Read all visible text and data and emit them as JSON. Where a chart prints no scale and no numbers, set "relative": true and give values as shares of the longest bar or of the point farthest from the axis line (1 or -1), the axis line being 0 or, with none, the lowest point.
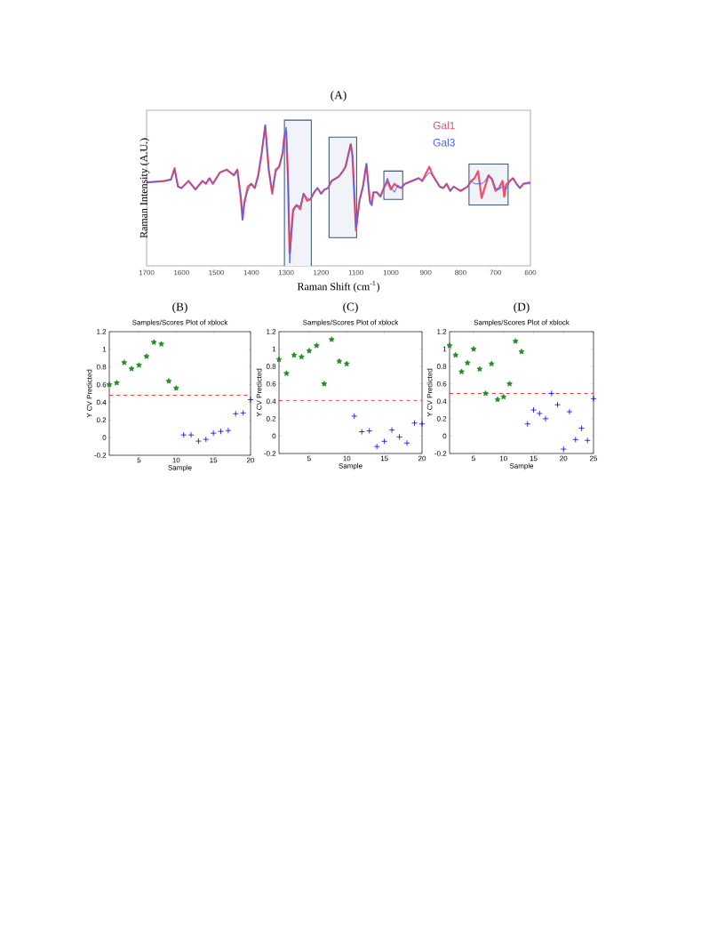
{
  "chart_data": [
    {
      "type": "line",
      "title": "(A)",
      "xlabel": "Raman Shift (cm$^{-1}$)",
      "ylabel": "Raman Intensity (A.U.)",
      "relative": true,
      "legend": "top right",
      "x": [
        1700,
        1650,
        1630,
        1620,
        1610,
        1600,
        1580,
        1560,
        1540,
        1530,
        1520,
        1510,
        1490,
        1470,
        1450,
        1440,
        1430,
        1425,
        1420,
        1410,
        1400,
        1390,
        1380,
        1370,
        1360,
        1350,
        1340,
        1330,
        1320,
        1310,
        1305,
        1300,
        1295,
        1290,
        1280,
        1270,
        1260,
        1250,
        1240,
        1230,
        1220,
        1210,
        1200,
        1190,
        1180,
        1170,
        1150,
        1140,
        1130,
        1115,
        1110,
        1100,
        1090,
        1080,
        1070,
        1060,
        1055,
        1050,
        1040,
        1030,
        1020,
        1010,
        1000,
        990,
        980,
        970,
        960,
        940,
        920,
        910,
        890,
        880,
        870,
        860,
        850,
        840,
        830,
        820,
        800,
        780,
        770,
        760,
        750,
        740,
        730,
        720,
        710,
        700,
        690,
        680,
        675,
        670,
        660,
        650,
        640,
        630,
        620,
        600
      ],
      "xlim": [
        1700,
        600
      ],
      "xticks": [
        1700,
        1600,
        1500,
        1400,
        1300,
        1200,
        1100,
        1000,
        900,
        800,
        700,
        600
      ],
      "series": [
        {
          "name": "Gal1",
          "color": "#f0506a",
          "values": [
            0.59,
            0.6,
            0.61,
            0.69,
            0.56,
            0.55,
            0.6,
            0.54,
            0.6,
            0.58,
            0.62,
            0.58,
            0.66,
            0.68,
            0.64,
            0.68,
            0.48,
            0.33,
            0.44,
            0.56,
            0.58,
            0.55,
            0.64,
            0.8,
            0.99,
            0.68,
            0.51,
            0.68,
            0.7,
            0.8,
            0.92,
            0.95,
            0.64,
            0.09,
            0.4,
            0.43,
            0.4,
            0.51,
            0.46,
            0.47,
            0.52,
            0.55,
            0.51,
            0.54,
            0.55,
            0.6,
            0.63,
            0.66,
            0.7,
            0.86,
            0.78,
            0.25,
            0.46,
            0.56,
            0.72,
            0.46,
            0.43,
            0.52,
            0.52,
            0.49,
            0.55,
            0.6,
            0.54,
            0.58,
            0.56,
            0.55,
            0.58,
            0.6,
            0.62,
            0.6,
            0.7,
            0.64,
            0.6,
            0.56,
            0.55,
            0.58,
            0.53,
            0.56,
            0.53,
            0.56,
            0.6,
            0.62,
            0.67,
            0.48,
            0.56,
            0.64,
            0.61,
            0.53,
            0.55,
            0.6,
            0.49,
            0.57,
            0.6,
            0.62,
            0.58,
            0.55,
            0.58,
            0.59
          ]
        },
        {
          "name": "Gal3",
          "color": "#4a5ef0",
          "values": [
            0.59,
            0.6,
            0.61,
            0.68,
            0.56,
            0.55,
            0.6,
            0.54,
            0.6,
            0.58,
            0.62,
            0.58,
            0.66,
            0.68,
            0.64,
            0.68,
            0.5,
            0.32,
            0.46,
            0.53,
            0.58,
            0.55,
            0.64,
            0.8,
            1.0,
            0.68,
            0.53,
            0.66,
            0.7,
            0.8,
            0.92,
            0.98,
            0.64,
            0.02,
            0.38,
            0.43,
            0.42,
            0.51,
            0.48,
            0.47,
            0.52,
            0.55,
            0.51,
            0.54,
            0.55,
            0.6,
            0.63,
            0.66,
            0.7,
            0.86,
            0.78,
            0.27,
            0.46,
            0.56,
            0.72,
            0.44,
            0.43,
            0.52,
            0.52,
            0.49,
            0.55,
            0.62,
            0.56,
            0.52,
            0.57,
            0.55,
            0.58,
            0.6,
            0.62,
            0.6,
            0.66,
            0.64,
            0.6,
            0.56,
            0.55,
            0.58,
            0.53,
            0.56,
            0.53,
            0.56,
            0.6,
            0.58,
            0.58,
            0.58,
            0.6,
            0.64,
            0.62,
            0.55,
            0.54,
            0.56,
            0.56,
            0.54,
            0.59,
            0.62,
            0.58,
            0.55,
            0.58,
            0.58
          ]
        }
      ],
      "bands": [
        {
          "axis": "x",
          "from": 1305,
          "to": 1228
        },
        {
          "axis": "x",
          "from": 1177,
          "to": 1098
        },
        {
          "axis": "x",
          "from": 1020,
          "to": 966
        },
        {
          "axis": "x",
          "from": 776,
          "to": 664
        }
      ]
    },
    {
      "type": "scatter",
      "title": "(B)",
      "subtitle": "Samples/Scores Plot of xblock",
      "xlabel": "Sample",
      "ylabel": "Y CV Predicted",
      "xlim": [
        1,
        20
      ],
      "xticks": [
        5,
        10,
        15,
        20
      ],
      "ylim": [
        -0.2,
        1.2
      ],
      "yticks": [
        -0.2,
        0,
        0.2,
        0.4,
        0.6,
        0.8,
        1,
        1.2
      ],
      "series": [
        {
          "color": "#1e8c1e",
          "marker": "star",
          "x": [
            1,
            2,
            3,
            4,
            5,
            6,
            7,
            8,
            9,
            10
          ],
          "values": [
            0.6,
            0.62,
            0.85,
            0.78,
            0.82,
            0.92,
            1.08,
            1.06,
            0.64,
            0.56
          ]
        },
        {
          "color": "#0000ff",
          "marker": "cross",
          "x": [
            11,
            12,
            13,
            14,
            15,
            16,
            17,
            18,
            19,
            20
          ],
          "values": [
            0.03,
            0.03,
            -0.04,
            -0.02,
            0.05,
            0.07,
            0.08,
            0.27,
            0.28,
            0.43
          ]
        }
      ],
      "ref_lines": [
        {
          "axis": "y",
          "value": 0.48,
          "color": "#ff0000",
          "line_style": "dashed"
        }
      ]
    },
    {
      "type": "scatter",
      "title": "(C)",
      "subtitle": "Samples/Scores Plot of xblock",
      "xlabel": "Sample",
      "ylabel": "Y CV Predicted",
      "xlim": [
        1,
        20
      ],
      "xticks": [
        5,
        10,
        15,
        20
      ],
      "ylim": [
        -0.2,
        1.2
      ],
      "yticks": [
        -0.2,
        0,
        0.2,
        0.4,
        0.6,
        0.8,
        1,
        1.2
      ],
      "series": [
        {
          "color": "#1e8c1e",
          "marker": "star",
          "x": [
            1,
            2,
            3,
            4,
            5,
            6,
            7,
            8,
            9,
            10
          ],
          "values": [
            0.88,
            0.72,
            0.93,
            0.91,
            0.98,
            1.04,
            0.6,
            1.11,
            0.86,
            0.83
          ]
        },
        {
          "color": "#0000ff",
          "marker": "cross",
          "x": [
            11,
            12,
            13,
            14,
            15,
            16,
            17,
            18,
            19,
            20
          ],
          "values": [
            0.23,
            0.05,
            0.06,
            -0.12,
            -0.06,
            0.07,
            -0.01,
            -0.08,
            0.15,
            0.14
          ]
        }
      ],
      "ref_lines": [
        {
          "axis": "y",
          "value": 0.41,
          "color": "#ff0000",
          "line_style": "dashed"
        }
      ]
    },
    {
      "type": "scatter",
      "title": "(D)",
      "subtitle": "Samples/Scores Plot of xblock",
      "xlabel": "Sample",
      "ylabel": "Y CV Predicted",
      "xlim": [
        1,
        25
      ],
      "xticks": [
        5,
        10,
        15,
        20,
        25
      ],
      "ylim": [
        -0.2,
        1.2
      ],
      "yticks": [
        -0.2,
        0,
        0.2,
        0.4,
        0.6,
        0.8,
        1,
        1.2
      ],
      "series": [
        {
          "color": "#1e8c1e",
          "marker": "star",
          "x": [
            1,
            2,
            3,
            4,
            5,
            6,
            7,
            8,
            9,
            10,
            11,
            12,
            13
          ],
          "values": [
            1.04,
            0.93,
            0.74,
            0.84,
            1.0,
            0.77,
            0.49,
            0.83,
            0.42,
            0.45,
            0.6,
            1.09,
            0.97
          ]
        },
        {
          "color": "#0000ff",
          "marker": "cross",
          "x": [
            14,
            15,
            16,
            17,
            18,
            19,
            20,
            21,
            22,
            23,
            24,
            25
          ],
          "values": [
            0.14,
            0.3,
            0.26,
            0.2,
            0.49,
            0.36,
            -0.15,
            0.28,
            -0.04,
            0.09,
            -0.05,
            0.43
          ]
        }
      ],
      "ref_lines": [
        {
          "axis": "y",
          "value": 0.49,
          "color": "#ff0000",
          "line_style": "dashed"
        }
      ]
    }
  ]
}
